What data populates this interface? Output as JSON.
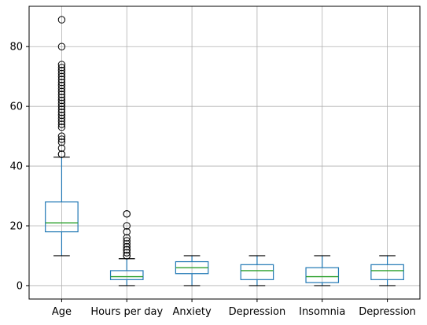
{
  "chart_data": {
    "type": "box",
    "grid": true,
    "ylim": [
      -4.5,
      93.5
    ],
    "yticks": [
      0,
      20,
      40,
      60,
      80
    ],
    "categories": [
      "Age",
      "Hours per day",
      "Anxiety",
      "Depression",
      "Insomnia",
      "Depression"
    ],
    "boxes": [
      {
        "label": "Age",
        "whisker_low": 10,
        "q1": 18,
        "median": 21,
        "q3": 28,
        "whisker_high": 43,
        "outliers": [
          44,
          44,
          46,
          48,
          49,
          50,
          53,
          54,
          55,
          56,
          57,
          58,
          59,
          60,
          61,
          62,
          63,
          64,
          65,
          66,
          67,
          68,
          69,
          70,
          71,
          72,
          73,
          74,
          80,
          89
        ]
      },
      {
        "label": "Hours per day",
        "whisker_low": 0,
        "q1": 2,
        "median": 3,
        "q3": 5,
        "whisker_high": 9,
        "outliers": [
          10,
          10,
          11,
          12,
          12,
          13,
          14,
          15,
          16,
          18,
          20,
          24,
          24
        ]
      },
      {
        "label": "Anxiety",
        "whisker_low": 0,
        "q1": 4,
        "median": 6,
        "q3": 8,
        "whisker_high": 10,
        "outliers": []
      },
      {
        "label": "Depression",
        "whisker_low": 0,
        "q1": 2,
        "median": 5,
        "q3": 7,
        "whisker_high": 10,
        "outliers": []
      },
      {
        "label": "Insomnia",
        "whisker_low": 0,
        "q1": 1,
        "median": 3,
        "q3": 6,
        "whisker_high": 10,
        "outliers": []
      },
      {
        "label": "Depression",
        "whisker_low": 0,
        "q1": 2,
        "median": 5,
        "q3": 7,
        "whisker_high": 10,
        "outliers": []
      }
    ],
    "colors": {
      "box": "#1f77b4",
      "median": "#2ca02c",
      "outlier": "#000000",
      "grid": "#b0b0b0",
      "axis": "#000000"
    }
  }
}
